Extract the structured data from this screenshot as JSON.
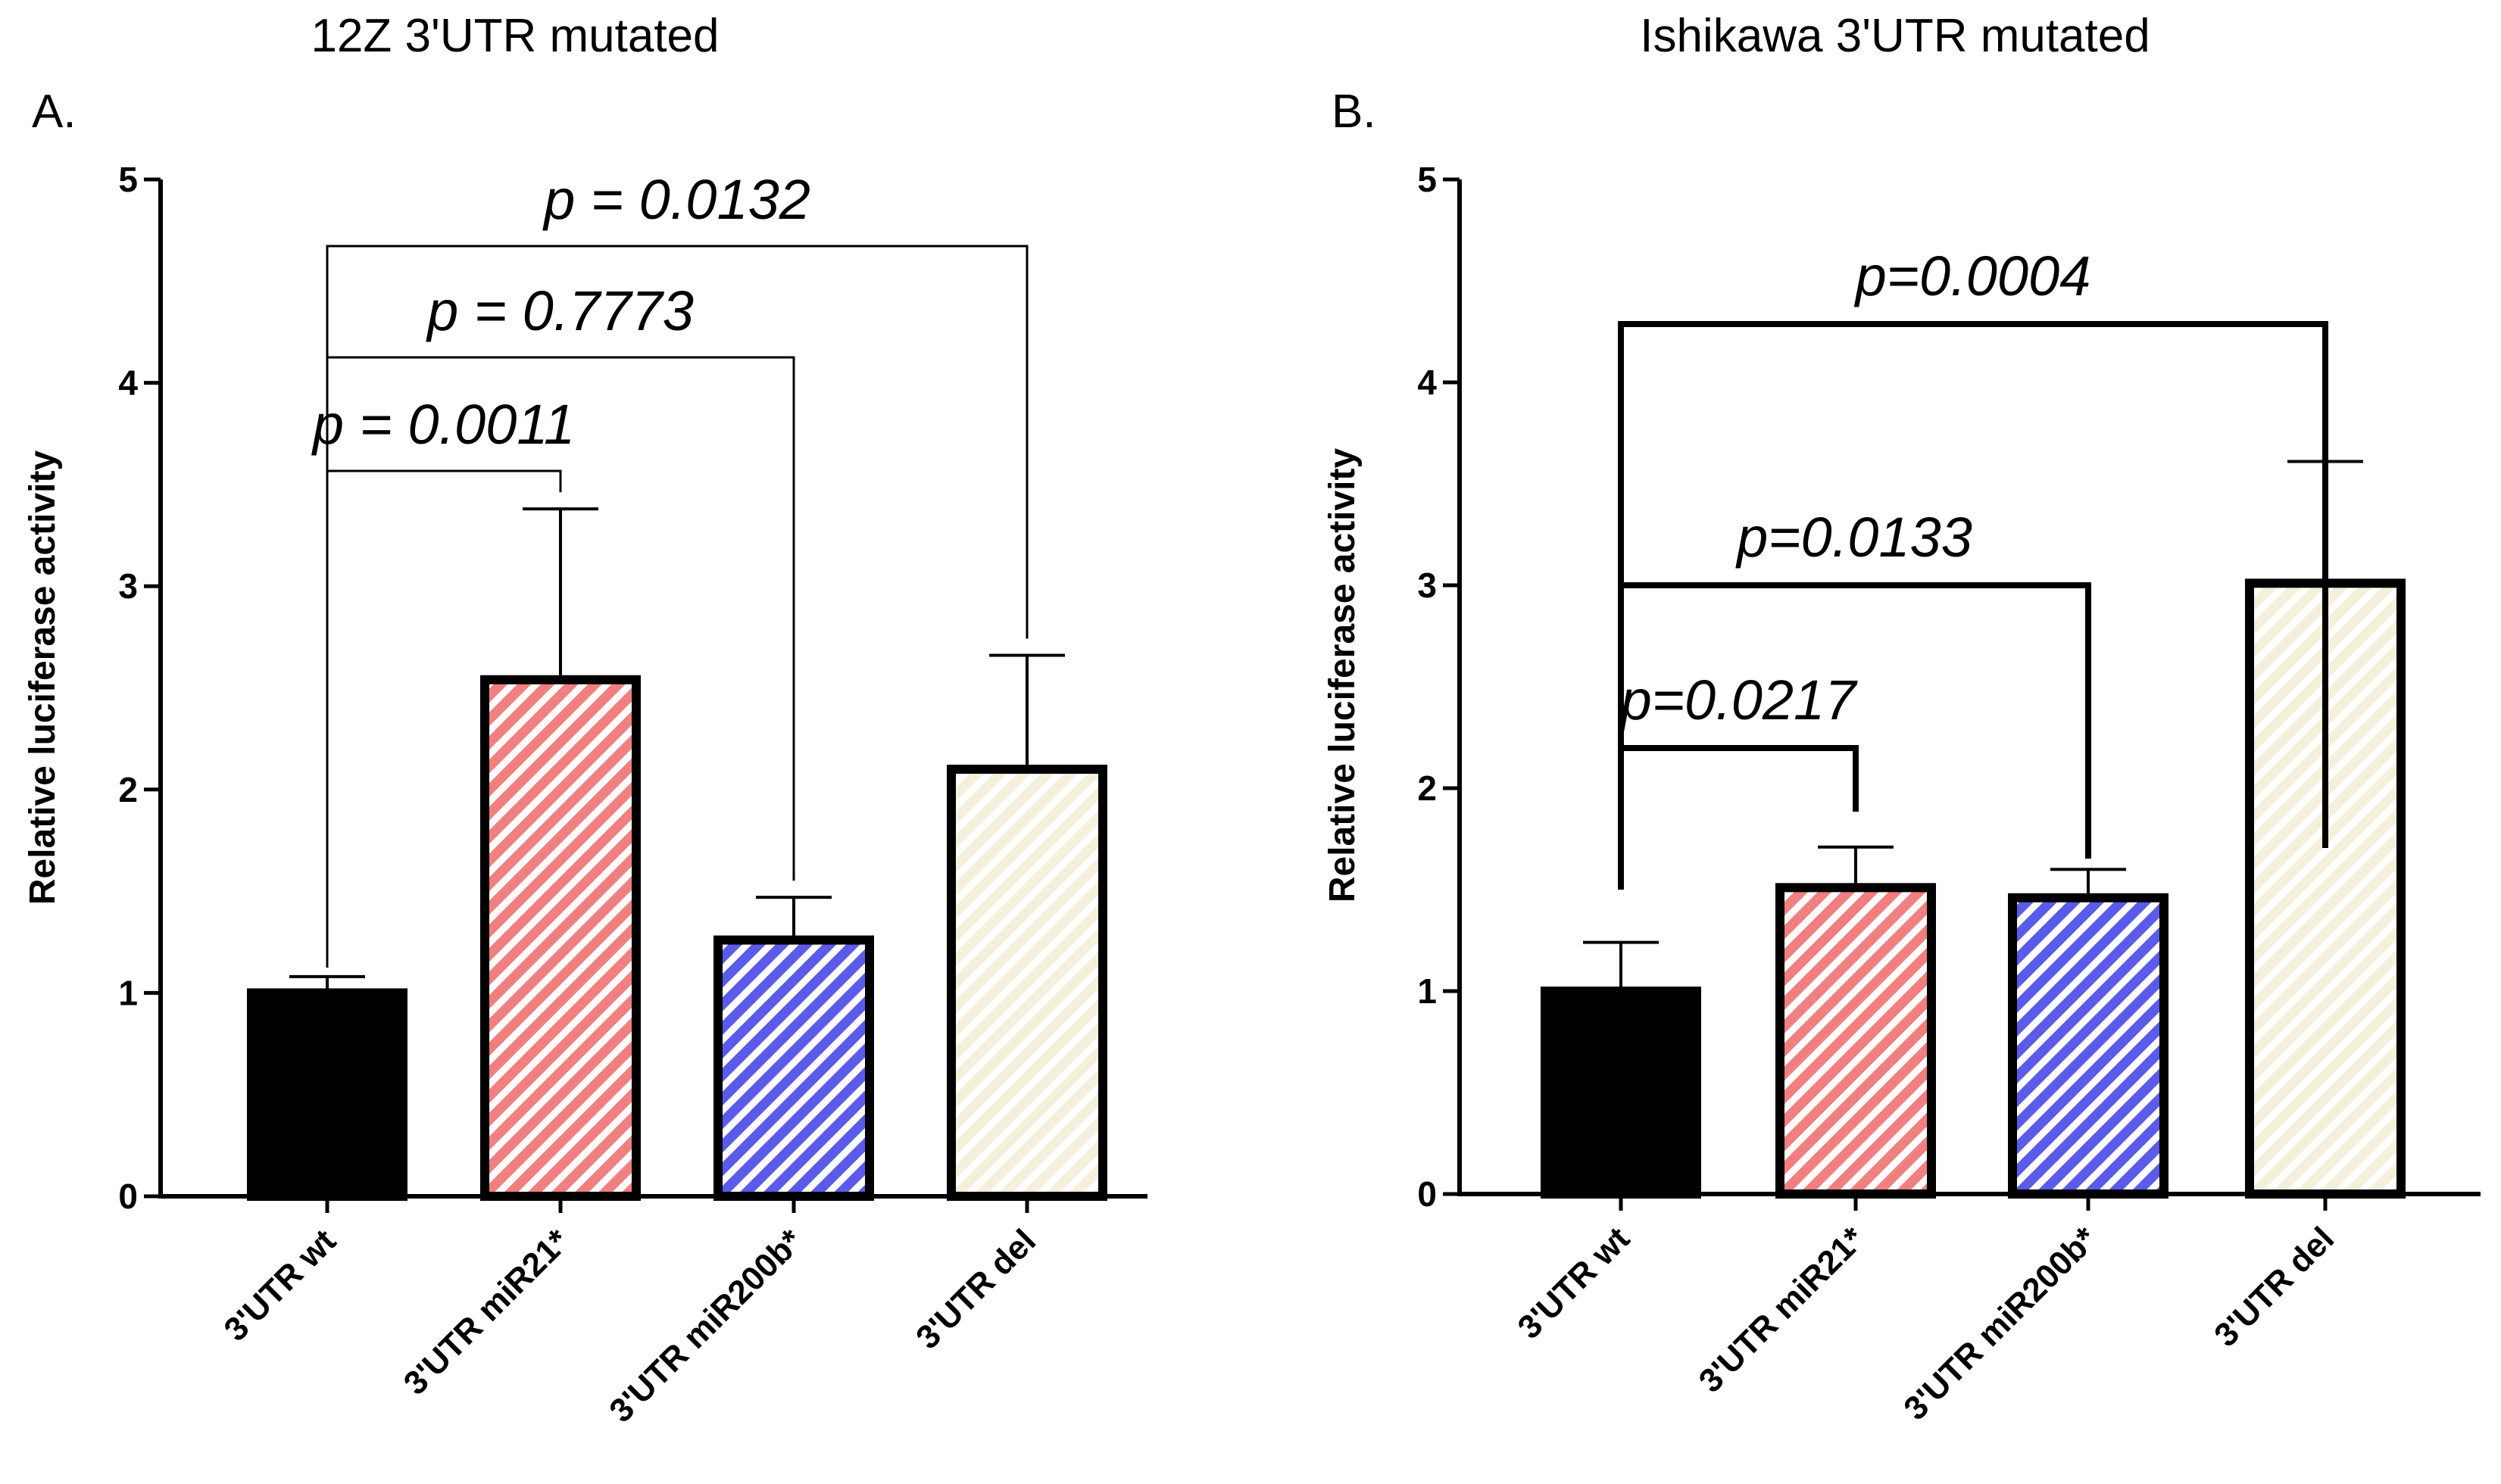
{
  "chart_data": [
    {
      "panel_label": "A.",
      "type": "bar",
      "title": "12Z 3'UTR mutated",
      "ylabel": "Relative luciferase activity",
      "xlabel": "",
      "ylim": [
        0,
        5
      ],
      "yticks": [
        "0",
        "1",
        "2",
        "3",
        "4",
        "5"
      ],
      "categories": [
        "3'UTR wt",
        "3'UTR miR21*",
        "3'UTR miR200b*",
        "3'UTR del"
      ],
      "values": [
        1.0,
        2.54,
        1.26,
        2.1
      ],
      "errors": [
        0.08,
        0.84,
        0.21,
        0.56
      ],
      "colors": [
        "#000000",
        "#f08080",
        "#5b5bea",
        "#f5f0dc"
      ],
      "comparisons": [
        {
          "from": 0,
          "to": 1,
          "label": "p = 0.0011"
        },
        {
          "from": 0,
          "to": 2,
          "label": "p = 0.7773"
        },
        {
          "from": 0,
          "to": 3,
          "label": "p = 0.0132"
        }
      ]
    },
    {
      "panel_label": "B.",
      "type": "bar",
      "title": "Ishikawa 3'UTR mutated",
      "ylabel": "Relative luciferase activity",
      "xlabel": "",
      "ylim": [
        0,
        5
      ],
      "yticks": [
        "0",
        "1",
        "2",
        "3",
        "4",
        "5"
      ],
      "categories": [
        "3'UTR wt",
        "3'UTR miR21*",
        "3'UTR miR200b*",
        "3'UTR del"
      ],
      "values": [
        1.0,
        1.51,
        1.46,
        3.01
      ],
      "errors": [
        0.24,
        0.2,
        0.14,
        0.6
      ],
      "colors": [
        "#000000",
        "#f08080",
        "#5b5bea",
        "#f5f0dc"
      ],
      "comparisons": [
        {
          "from": 0,
          "to": 1,
          "label": "p=0.0217"
        },
        {
          "from": 0,
          "to": 2,
          "label": "p=0.0133"
        },
        {
          "from": 0,
          "to": 3,
          "label": "p=0.0004"
        }
      ]
    }
  ]
}
